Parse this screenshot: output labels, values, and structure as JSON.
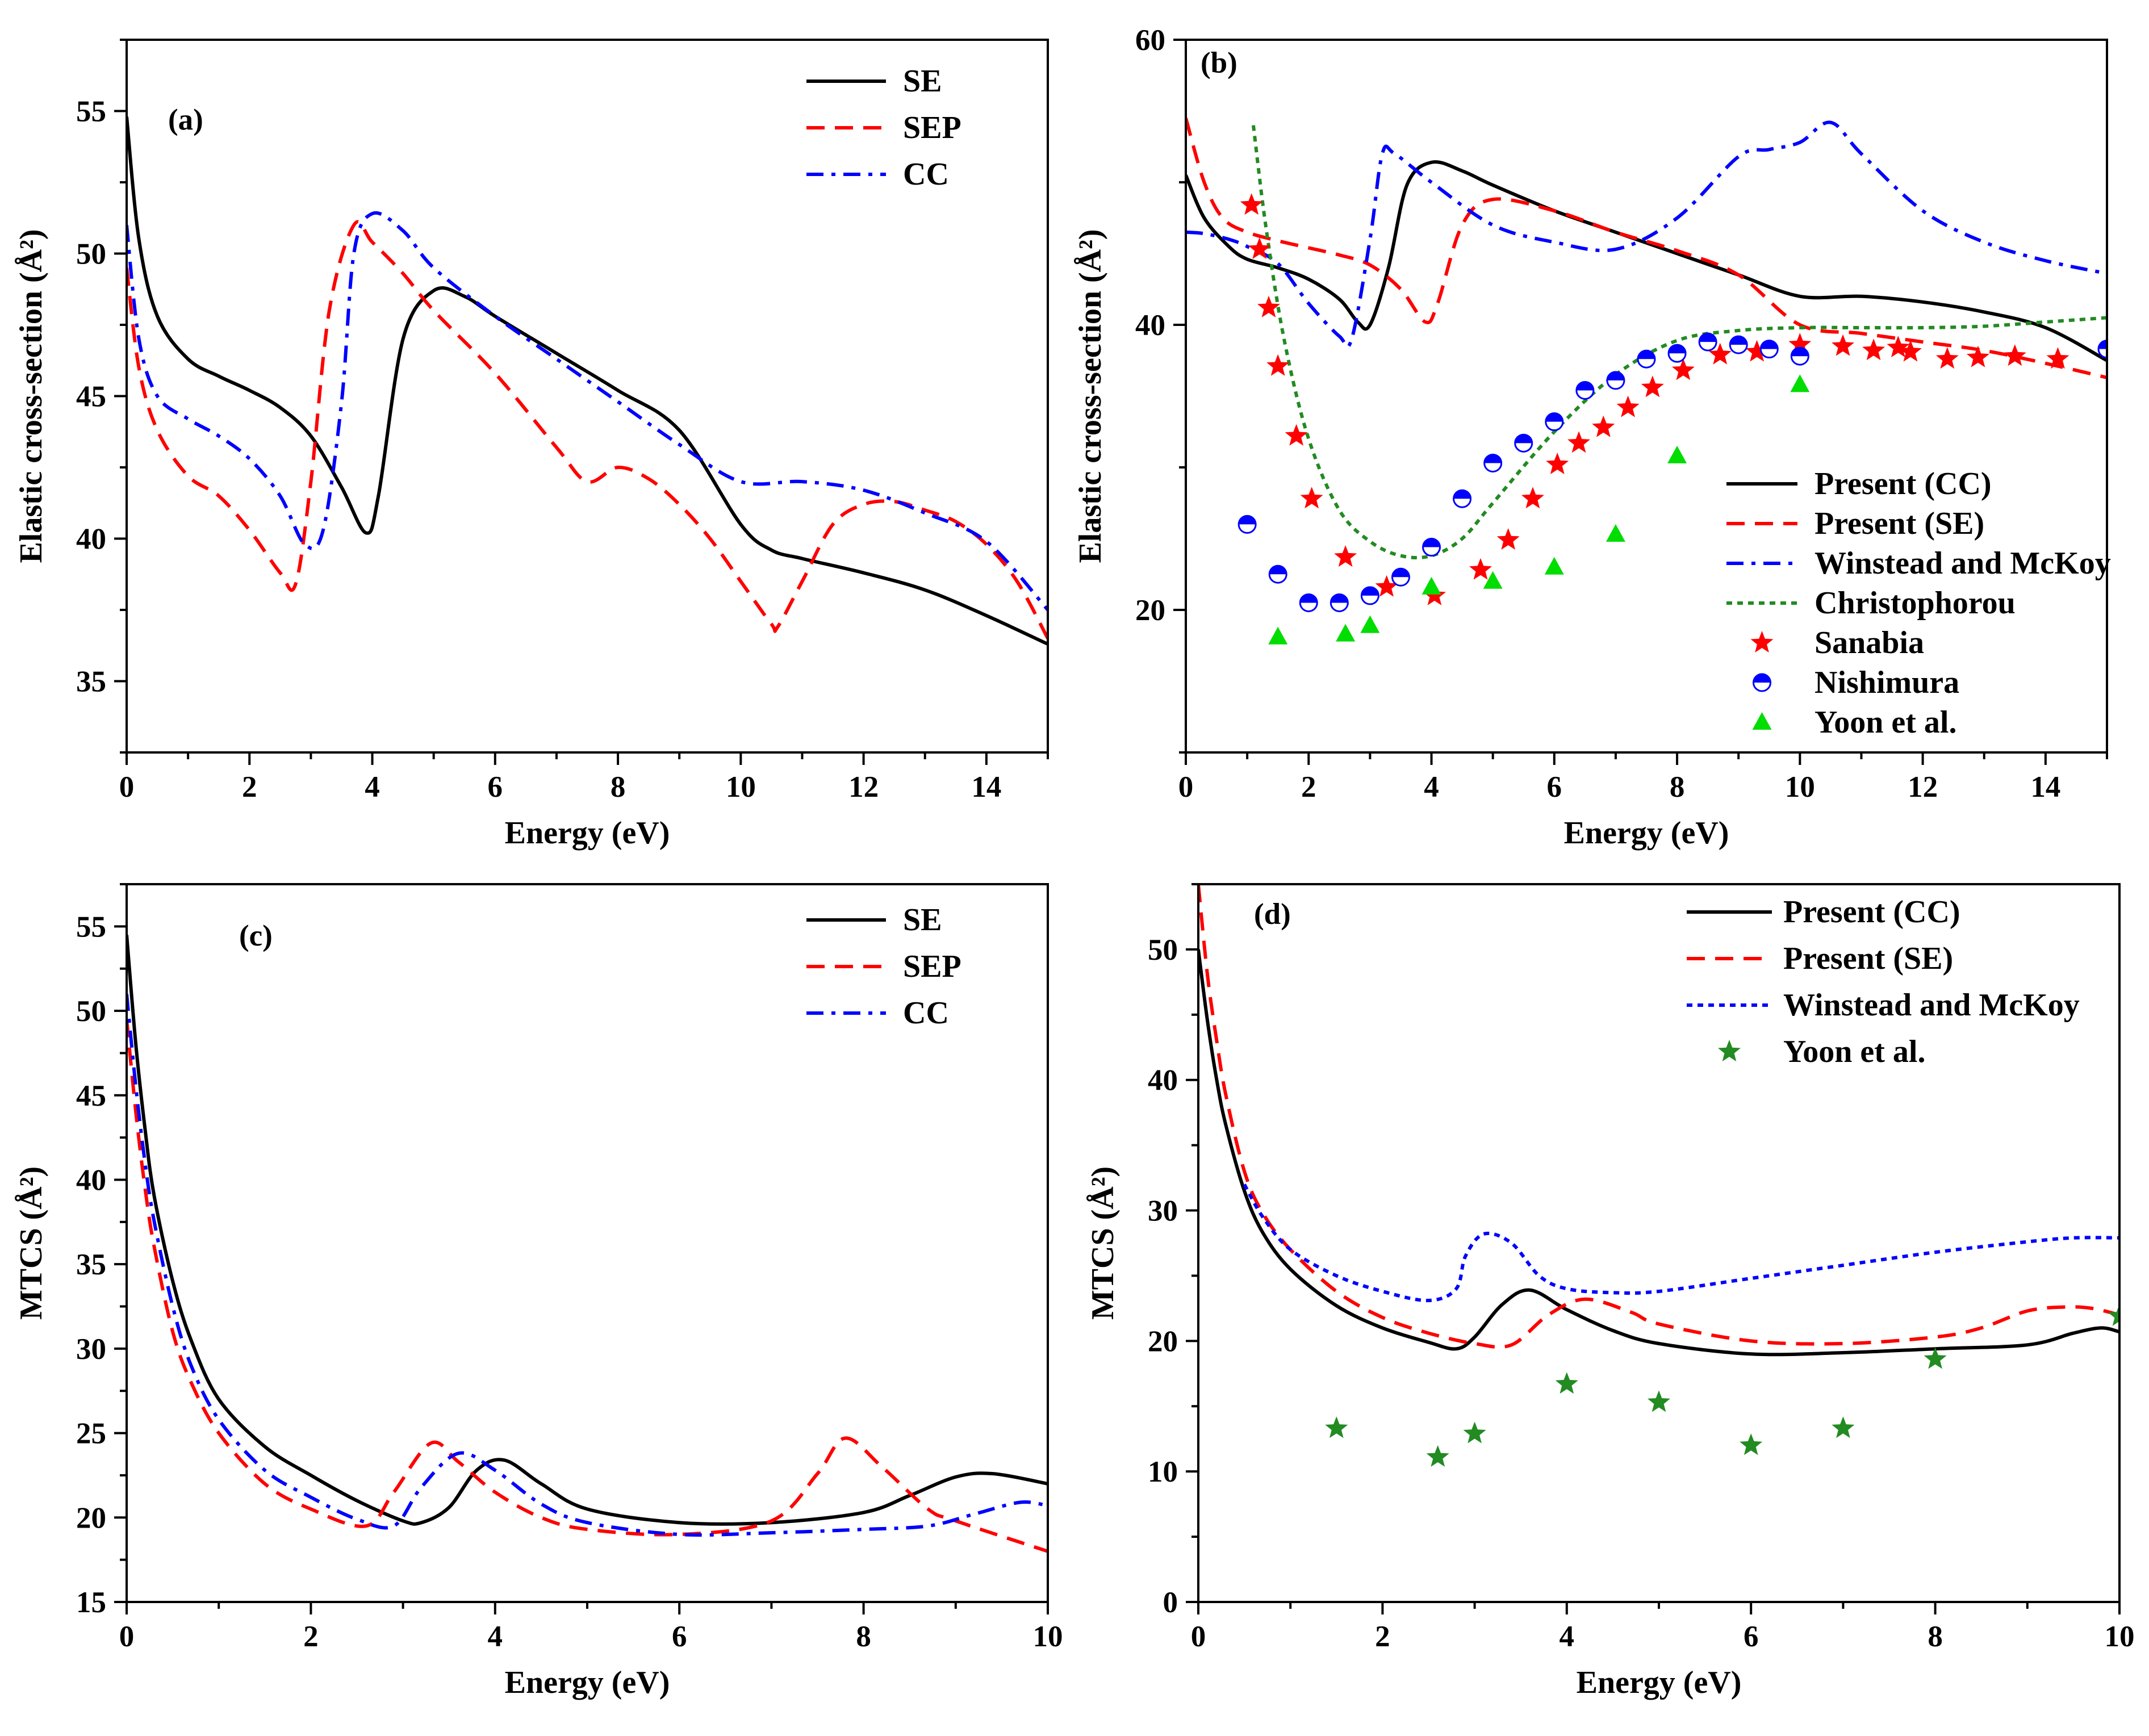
{
  "chart_data": [
    {
      "type": "line",
      "panel_label": "(a)",
      "xlabel": "Energy (eV)",
      "ylabel": "Elastic cross-section (Å²)",
      "xlim": [
        0,
        15
      ],
      "ylim": [
        32.5,
        57.5
      ],
      "xticks": [
        0,
        2,
        4,
        6,
        8,
        10,
        12,
        14
      ],
      "yticks": [
        35,
        40,
        45,
        50,
        55
      ],
      "legend_position": "top-right",
      "series": [
        {
          "name": "SE",
          "color": "#000000",
          "dash": "solid",
          "x": [
            0,
            0.2,
            0.5,
            1,
            1.5,
            2,
            2.5,
            3,
            3.5,
            3.9,
            4.1,
            4.5,
            5,
            5.5,
            6,
            7,
            8,
            9,
            10,
            10.5,
            11,
            12,
            13,
            14,
            15
          ],
          "y": [
            54.8,
            50.5,
            47.8,
            46.3,
            45.7,
            45.2,
            44.6,
            43.6,
            41.8,
            40.2,
            41.5,
            47,
            48.7,
            48.5,
            47.8,
            46.5,
            45.2,
            43.8,
            40.5,
            39.6,
            39.3,
            38.8,
            38.2,
            37.3,
            36.3
          ]
        },
        {
          "name": "SEP",
          "color": "#ff0000",
          "dash": "dashed",
          "x": [
            0,
            0.2,
            0.5,
            1,
            1.5,
            2,
            2.5,
            2.75,
            3,
            3.3,
            3.7,
            4,
            4.5,
            5,
            6,
            7,
            7.5,
            8,
            8.5,
            9,
            9.5,
            10,
            10.5,
            10.6,
            11,
            11.5,
            12,
            12.5,
            13,
            13.5,
            14,
            14.5,
            15
          ],
          "y": [
            49.5,
            46,
            43.8,
            42.2,
            41.5,
            40.3,
            38.8,
            38.4,
            42,
            48,
            51,
            50.4,
            49.3,
            48,
            45.8,
            43.2,
            42,
            42.5,
            42.1,
            41.2,
            40,
            38.5,
            37,
            36.9,
            38.5,
            40.5,
            41.2,
            41.3,
            41,
            40.6,
            39.8,
            38.5,
            36.5
          ]
        },
        {
          "name": "CC",
          "color": "#0000ff",
          "dash": "dashdot",
          "x": [
            0,
            0.2,
            0.5,
            1,
            1.5,
            2,
            2.5,
            2.9,
            3.2,
            3.5,
            3.7,
            4,
            4.5,
            5,
            6,
            7,
            8,
            9,
            10,
            11,
            12,
            13,
            14,
            15
          ],
          "y": [
            51,
            47,
            45,
            44.2,
            43.6,
            42.8,
            41.5,
            39.8,
            40.3,
            44.8,
            50,
            51.4,
            50.8,
            49.5,
            47.8,
            46.3,
            44.8,
            43.3,
            42,
            42,
            41.7,
            40.9,
            39.9,
            37.5
          ]
        }
      ]
    },
    {
      "type": "line",
      "panel_label": "(b)",
      "xlabel": "Energy (eV)",
      "ylabel": "Elastic cross-section (Å²)",
      "xlim": [
        0,
        15
      ],
      "ylim": [
        10,
        60
      ],
      "xticks": [
        0,
        2,
        4,
        6,
        8,
        10,
        12,
        14
      ],
      "yticks": [
        20,
        40,
        60
      ],
      "legend_position": "bottom-right",
      "series": [
        {
          "name": "Present (CC)",
          "color": "#000000",
          "dash": "solid",
          "x": [
            0,
            0.3,
            0.7,
            1,
            1.5,
            2,
            2.5,
            2.8,
            3,
            3.3,
            3.6,
            4,
            4.5,
            5,
            6,
            7,
            8,
            9,
            10,
            11,
            12,
            13,
            14,
            15
          ],
          "y": [
            50.5,
            47.5,
            45.5,
            44.6,
            44,
            43.2,
            41.8,
            40.2,
            40,
            44,
            49.8,
            51.4,
            50.8,
            49.8,
            48,
            46.5,
            45,
            43.5,
            42,
            42,
            41.6,
            40.9,
            39.8,
            37.5
          ]
        },
        {
          "name": "Present (SE)",
          "color": "#ff0000",
          "dash": "dashed",
          "x": [
            0,
            0.3,
            0.6,
            1,
            1.5,
            2,
            2.5,
            3,
            3.5,
            3.9,
            4.1,
            4.5,
            5,
            6,
            7,
            8,
            9,
            10,
            11,
            12,
            13,
            14,
            15
          ],
          "y": [
            54.5,
            50,
            47.5,
            46.5,
            45.9,
            45.4,
            44.9,
            44.2,
            42.5,
            40.2,
            41.5,
            47,
            48.8,
            48,
            46.5,
            45.2,
            43.5,
            40,
            39.4,
            38.8,
            38.2,
            37.3,
            36.3
          ]
        },
        {
          "name": "Winstead and McKoy",
          "color": "#0000ff",
          "dash": "dashdot",
          "x": [
            0,
            0.3,
            0.7,
            1,
            1.5,
            2,
            2.5,
            2.7,
            3,
            3.2,
            3.4,
            4,
            5,
            6,
            7,
            8,
            9,
            9.5,
            10,
            10.5,
            11,
            12,
            13,
            14,
            15
          ],
          "y": [
            46.5,
            46.4,
            46,
            45.5,
            44.3,
            41.5,
            39.2,
            39,
            46,
            52,
            52,
            50,
            47,
            45.8,
            45.3,
            47.5,
            51.8,
            52.3,
            52.8,
            54.2,
            52,
            48,
            45.8,
            44.5,
            43.6
          ]
        },
        {
          "name": "Christophorou",
          "color": "#228b22",
          "dash": "dotted",
          "x": [
            1.1,
            1.3,
            1.6,
            2,
            2.5,
            3,
            3.5,
            4,
            4.5,
            5,
            6,
            7,
            8,
            9,
            10,
            11,
            12,
            13,
            14,
            15
          ],
          "y": [
            54,
            47,
            39,
            32,
            27,
            24.8,
            23.8,
            23.8,
            25,
            27.5,
            32.5,
            36.5,
            38.9,
            39.6,
            39.8,
            39.8,
            39.8,
            39.9,
            40.2,
            40.5
          ]
        },
        {
          "name": "Sanabia",
          "color": "#ff0000",
          "marker": "star",
          "x": [
            1.07,
            1.2,
            1.35,
            1.5,
            1.8,
            2.05,
            2.6,
            3.27,
            4.05,
            4.8,
            5.25,
            5.65,
            6.05,
            6.4,
            6.8,
            7.2,
            7.6,
            8.1,
            8.7,
            9.3,
            10,
            10.7,
            11.2,
            11.6,
            11.8,
            12.4,
            12.9,
            13.5,
            14.2
          ],
          "y": [
            48.4,
            45.3,
            41.2,
            37.1,
            32.2,
            27.8,
            23.7,
            21.6,
            21.0,
            22.8,
            24.9,
            27.8,
            30.2,
            31.7,
            32.8,
            34.2,
            35.6,
            36.8,
            37.9,
            38.1,
            38.6,
            38.5,
            38.2,
            38.4,
            38.1,
            37.6,
            37.7,
            37.8,
            37.6
          ]
        },
        {
          "name": "Nishimura",
          "color": "#0000ff",
          "marker": "half-circle",
          "x": [
            1,
            1.5,
            2,
            2.5,
            3,
            3.5,
            4,
            4.5,
            5,
            5.5,
            6,
            6.5,
            7,
            7.5,
            8,
            8.5,
            9,
            9.5,
            10,
            15
          ],
          "y": [
            26,
            22.5,
            20.5,
            20.5,
            21,
            22.3,
            24.4,
            27.8,
            30.3,
            31.7,
            33.2,
            35.4,
            36.1,
            37.6,
            38,
            38.8,
            38.6,
            38.3,
            37.8,
            38.3
          ]
        },
        {
          "name": "Yoon et al.",
          "color": "#00dd00",
          "marker": "triangle",
          "x": [
            1.5,
            2.6,
            3,
            4,
            5,
            6,
            7,
            8,
            10
          ],
          "y": [
            18.1,
            18.3,
            18.9,
            21.6,
            22,
            23,
            25.3,
            30.8,
            35.8
          ]
        }
      ]
    },
    {
      "type": "line",
      "panel_label": "(c)",
      "xlabel": "Energy (eV)",
      "ylabel": "MTCS (Å²)",
      "xlim": [
        0,
        10
      ],
      "ylim": [
        15,
        57.5
      ],
      "xticks": [
        0,
        2,
        4,
        6,
        8,
        10
      ],
      "yticks": [
        15,
        20,
        25,
        30,
        35,
        40,
        45,
        50,
        55
      ],
      "legend_position": "top-right",
      "series": [
        {
          "name": "SE",
          "color": "#000000",
          "dash": "solid",
          "x": [
            0,
            0.1,
            0.2,
            0.3,
            0.5,
            0.7,
            1,
            1.5,
            2,
            2.5,
            3,
            3.2,
            3.5,
            3.8,
            4.1,
            4.5,
            5,
            6,
            7,
            8,
            8.5,
            9,
            9.4,
            10
          ],
          "y": [
            54.5,
            48,
            43,
            39,
            34,
            30.5,
            27,
            24.2,
            22.5,
            21,
            19.8,
            19.7,
            20.6,
            22.8,
            23.4,
            22,
            20.5,
            19.7,
            19.7,
            20.3,
            21.3,
            22.4,
            22.6,
            22
          ]
        },
        {
          "name": "SEP",
          "color": "#ff0000",
          "dash": "dashed",
          "x": [
            0,
            0.1,
            0.2,
            0.3,
            0.5,
            0.7,
            1,
            1.5,
            2,
            2.6,
            2.9,
            3.3,
            3.6,
            4,
            4.5,
            5,
            6,
            7,
            7.5,
            7.8,
            8.2,
            8.7,
            9,
            10
          ],
          "y": [
            49.5,
            44,
            39.5,
            36,
            31,
            28,
            25,
            22,
            20.5,
            19.5,
            21.5,
            24.4,
            23.3,
            21.5,
            20,
            19.3,
            19,
            19.8,
            22.6,
            24.7,
            23,
            20.5,
            19.8,
            18
          ]
        },
        {
          "name": "CC",
          "color": "#0000ff",
          "dash": "dashdot",
          "x": [
            0,
            0.1,
            0.2,
            0.3,
            0.5,
            0.7,
            1,
            1.5,
            2,
            2.5,
            2.9,
            3.2,
            3.6,
            4,
            4.5,
            5,
            6,
            7,
            8,
            8.7,
            9.2,
            9.7,
            10
          ],
          "y": [
            51,
            45.5,
            41,
            37.5,
            32.5,
            29,
            25.8,
            22.8,
            21.2,
            19.9,
            19.5,
            21.8,
            23.8,
            22.8,
            20.8,
            19.7,
            19,
            19.1,
            19.3,
            19.5,
            20.2,
            20.9,
            20.7
          ]
        }
      ]
    },
    {
      "type": "line",
      "panel_label": "(d)",
      "xlabel": "Energy (eV)",
      "ylabel": "MTCS (Å²)",
      "xlim": [
        0,
        10
      ],
      "ylim": [
        0,
        55
      ],
      "xticks": [
        0,
        2,
        4,
        6,
        8,
        10
      ],
      "yticks": [
        0,
        10,
        20,
        30,
        40,
        50
      ],
      "legend_position": "top-right",
      "series": [
        {
          "name": "Present (CC)",
          "color": "#000000",
          "dash": "solid",
          "x": [
            0,
            0.1,
            0.2,
            0.3,
            0.5,
            0.7,
            1,
            1.5,
            2,
            2.5,
            2.8,
            3,
            3.3,
            3.6,
            4,
            4.5,
            5,
            6,
            7,
            8,
            9,
            9.5,
            9.8,
            10
          ],
          "y": [
            50,
            44.5,
            40,
            36.5,
            31.5,
            28.3,
            25.5,
            22.7,
            21,
            19.9,
            19.4,
            20.3,
            22.8,
            23.9,
            22.4,
            20.8,
            19.8,
            19,
            19.1,
            19.4,
            19.7,
            20.6,
            21,
            20.7
          ]
        },
        {
          "name": "Present (SE)",
          "color": "#ff0000",
          "dash": "dashed",
          "x": [
            0,
            0.1,
            0.2,
            0.3,
            0.5,
            0.7,
            1,
            1.5,
            2,
            2.5,
            3,
            3.4,
            3.8,
            4.2,
            4.7,
            5,
            6,
            7,
            8,
            8.5,
            9,
            9.4,
            9.7,
            10
          ],
          "y": [
            55,
            48,
            43,
            38.8,
            33,
            29.8,
            27,
            23.8,
            21.8,
            20.6,
            19.8,
            19.7,
            22,
            23.2,
            22.2,
            21.3,
            20,
            19.8,
            20.3,
            21,
            22.3,
            22.6,
            22.5,
            22
          ]
        },
        {
          "name": "Winstead and McKoy",
          "color": "#0000ff",
          "dash": "dotted",
          "x": [
            0.5,
            0.7,
            1,
            1.5,
            2,
            2.5,
            2.8,
            2.9,
            3.1,
            3.4,
            3.7,
            4,
            4.5,
            5,
            6,
            7,
            8,
            9,
            9.5,
            10
          ],
          "y": [
            32,
            29.5,
            27,
            25,
            23.8,
            23.1,
            24,
            26.5,
            28.2,
            27.5,
            25,
            24,
            23.7,
            23.8,
            24.8,
            25.8,
            26.8,
            27.6,
            27.9,
            27.9
          ]
        },
        {
          "name": "Yoon et al.",
          "color": "#228b22",
          "marker": "star",
          "x": [
            1.5,
            2.6,
            3,
            4,
            5,
            6,
            7,
            8,
            10
          ],
          "y": [
            13.3,
            11.1,
            12.9,
            16.7,
            15.3,
            12,
            13.3,
            18.6,
            21.9
          ]
        }
      ]
    }
  ]
}
